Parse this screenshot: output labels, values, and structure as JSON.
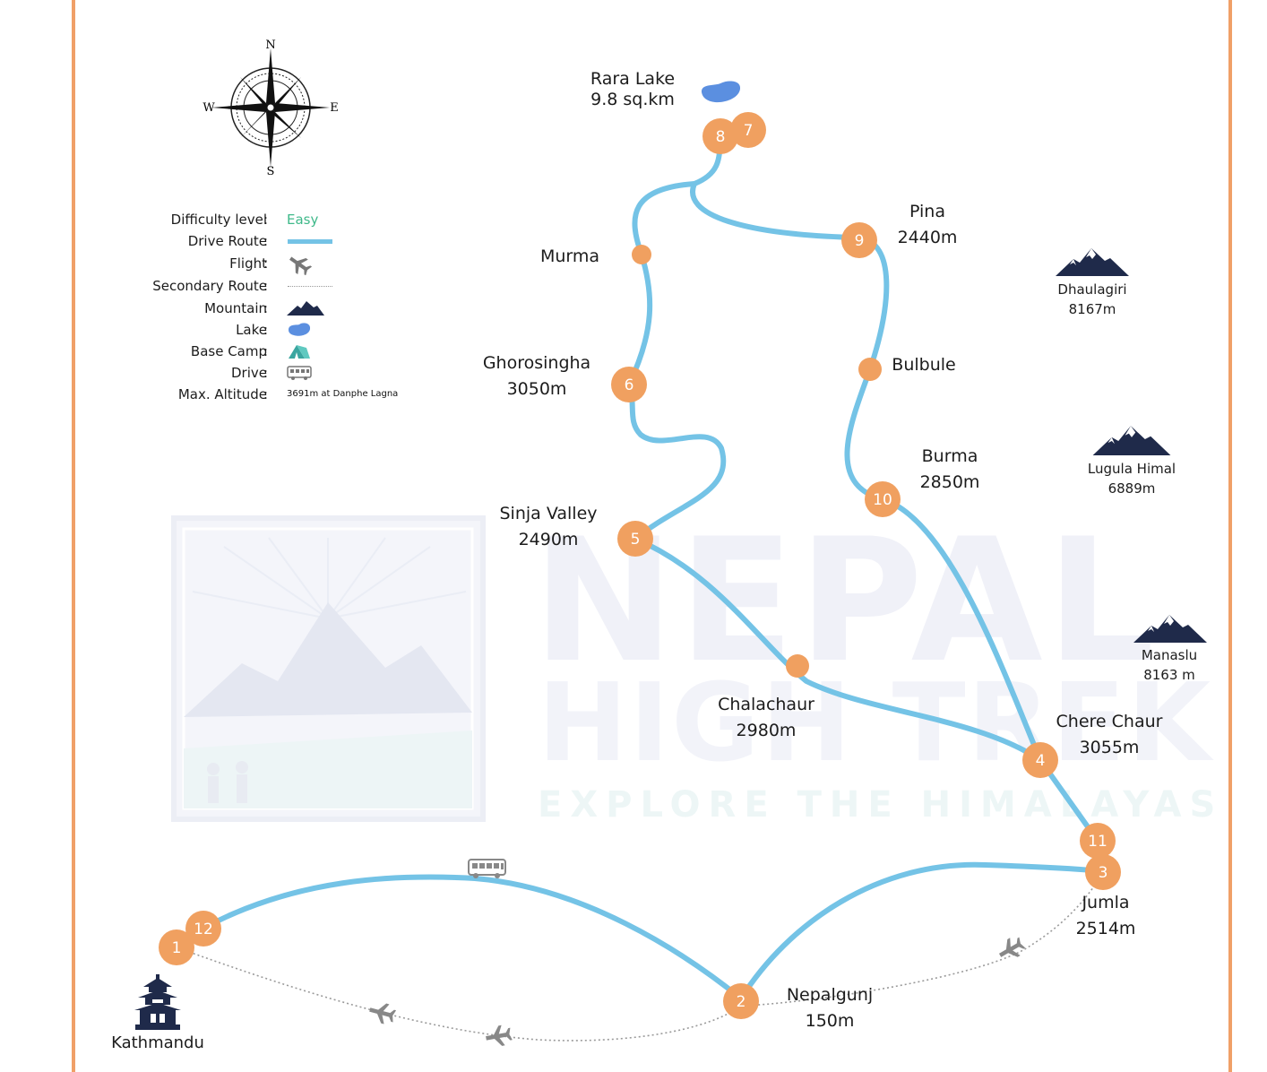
{
  "colors": {
    "route": "#74c3e6",
    "marker": "#f0a060",
    "marker_text": "#ffffff",
    "mountain": "#1f2a4a",
    "lake": "#5b8fe0",
    "easy": "#3fb98a",
    "border": "#f0a068",
    "secondary_route": "#9a9a9a",
    "watermark": "#eef0f7"
  },
  "compass": {
    "n": "N",
    "s": "S",
    "e": "E",
    "w": "W"
  },
  "legend": [
    {
      "key": "Difficulty level",
      "value": "Easy",
      "icon": "text-easy"
    },
    {
      "key": "Drive Route",
      "value": "",
      "icon": "blue-line"
    },
    {
      "key": "Flight",
      "value": "",
      "icon": "plane-icon"
    },
    {
      "key": "Secondary Route",
      "value": "",
      "icon": "dotted-line"
    },
    {
      "key": "Mountain",
      "value": "",
      "icon": "mountain-icon"
    },
    {
      "key": "Lake",
      "value": "",
      "icon": "lake-icon"
    },
    {
      "key": "Base Camp",
      "value": "",
      "icon": "tent-icon"
    },
    {
      "key": "Drive",
      "value": "",
      "icon": "bus-icon"
    },
    {
      "key": "Max. Altitude",
      "value": "3691m at Danphe Lagna",
      "icon": "text-small"
    }
  ],
  "stops": [
    {
      "num": "1"
    },
    {
      "num": "12"
    },
    {
      "num": "2"
    },
    {
      "num": "3"
    },
    {
      "num": "11"
    },
    {
      "num": "4"
    },
    {
      "num": "10"
    },
    {
      "num": "9"
    },
    {
      "num": "8"
    },
    {
      "num": "7"
    },
    {
      "num": "6"
    },
    {
      "num": "5"
    }
  ],
  "places": {
    "rara_lake": {
      "name": "Rara Lake",
      "sub": "9.8 sq.km"
    },
    "pina": {
      "name": "Pina",
      "alt": "2440m"
    },
    "murma": {
      "name": "Murma"
    },
    "ghorosingha": {
      "name": "Ghorosingha",
      "alt": "3050m"
    },
    "bulbule": {
      "name": "Bulbule"
    },
    "burma": {
      "name": "Burma",
      "alt": "2850m"
    },
    "sinja_valley": {
      "name": "Sinja Valley",
      "alt": "2490m"
    },
    "chalachaur": {
      "name": "Chalachaur",
      "alt": "2980m"
    },
    "chere_chaur": {
      "name": "Chere Chaur",
      "alt": "3055m"
    },
    "jumla": {
      "name": "Jumla",
      "alt": "2514m"
    },
    "nepalgunj": {
      "name": "Nepalgunj",
      "alt": "150m"
    },
    "kathmandu": {
      "name": "Kathmandu"
    }
  },
  "mountains": [
    {
      "name": "Dhaulagiri",
      "alt": "8167m"
    },
    {
      "name": "Lugula Himal",
      "alt": "6889m"
    },
    {
      "name": "Manaslu",
      "alt": "8163 m"
    }
  ],
  "watermark": {
    "line1": "NEPAL",
    "line2": "HIGH TREK",
    "tagline": "EXPLORE THE HIMALAYAS"
  }
}
